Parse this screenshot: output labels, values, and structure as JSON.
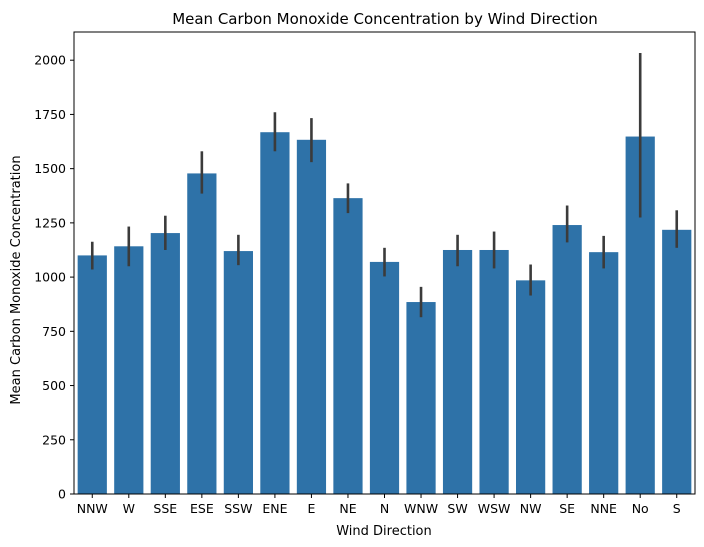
{
  "chart_data": {
    "type": "bar",
    "title": "Mean Carbon Monoxide Concentration by Wind Direction",
    "xlabel": "Wind Direction",
    "ylabel": "Mean Carbon Monoxide Concentration",
    "ylim": [
      0,
      2130
    ],
    "yticks": [
      0,
      250,
      500,
      750,
      1000,
      1250,
      1500,
      1750,
      2000
    ],
    "grid": false,
    "bar_color": "#2e72a8",
    "error_color": "#3b3b3b",
    "categories": [
      "NNW",
      "W",
      "SSE",
      "ESE",
      "SSW",
      "ENE",
      "E",
      "NE",
      "N",
      "WNW",
      "SW",
      "WSW",
      "NW",
      "SE",
      "NNE",
      "No",
      "S"
    ],
    "values": [
      1100,
      1142,
      1203,
      1478,
      1120,
      1668,
      1633,
      1364,
      1070,
      885,
      1125,
      1125,
      985,
      1240,
      1115,
      1648,
      1218
    ],
    "error_low": [
      1035,
      1050,
      1125,
      1385,
      1055,
      1580,
      1530,
      1295,
      1003,
      815,
      1050,
      1040,
      915,
      1160,
      1040,
      1275,
      1135
    ],
    "error_high": [
      1163,
      1233,
      1283,
      1580,
      1195,
      1760,
      1733,
      1432,
      1135,
      955,
      1195,
      1210,
      1058,
      1330,
      1190,
      2033,
      1308
    ]
  }
}
